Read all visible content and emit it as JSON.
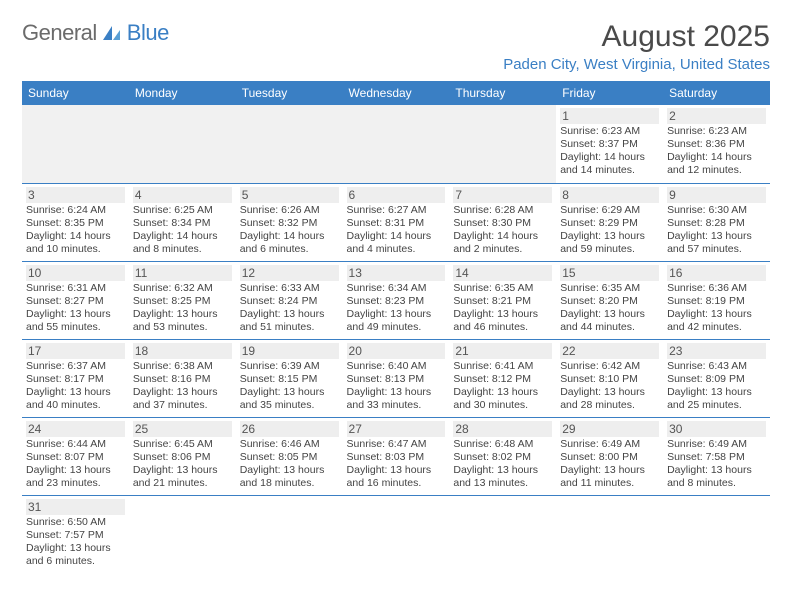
{
  "logo": {
    "part1": "General",
    "part2": "Blue"
  },
  "title": "August 2025",
  "location": "Paden City, West Virginia, United States",
  "colors": {
    "header_bg": "#3a7fc4",
    "header_text": "#ffffff",
    "accent": "#3a7fc4",
    "day_bg": "#eeeeee",
    "body_text": "#444444"
  },
  "weekdays": [
    "Sunday",
    "Monday",
    "Tuesday",
    "Wednesday",
    "Thursday",
    "Friday",
    "Saturday"
  ],
  "weeks": [
    [
      null,
      null,
      null,
      null,
      null,
      {
        "d": "1",
        "sr": "6:23 AM",
        "ss": "8:37 PM",
        "dl": "14 hours and 14 minutes."
      },
      {
        "d": "2",
        "sr": "6:23 AM",
        "ss": "8:36 PM",
        "dl": "14 hours and 12 minutes."
      }
    ],
    [
      {
        "d": "3",
        "sr": "6:24 AM",
        "ss": "8:35 PM",
        "dl": "14 hours and 10 minutes."
      },
      {
        "d": "4",
        "sr": "6:25 AM",
        "ss": "8:34 PM",
        "dl": "14 hours and 8 minutes."
      },
      {
        "d": "5",
        "sr": "6:26 AM",
        "ss": "8:32 PM",
        "dl": "14 hours and 6 minutes."
      },
      {
        "d": "6",
        "sr": "6:27 AM",
        "ss": "8:31 PM",
        "dl": "14 hours and 4 minutes."
      },
      {
        "d": "7",
        "sr": "6:28 AM",
        "ss": "8:30 PM",
        "dl": "14 hours and 2 minutes."
      },
      {
        "d": "8",
        "sr": "6:29 AM",
        "ss": "8:29 PM",
        "dl": "13 hours and 59 minutes."
      },
      {
        "d": "9",
        "sr": "6:30 AM",
        "ss": "8:28 PM",
        "dl": "13 hours and 57 minutes."
      }
    ],
    [
      {
        "d": "10",
        "sr": "6:31 AM",
        "ss": "8:27 PM",
        "dl": "13 hours and 55 minutes."
      },
      {
        "d": "11",
        "sr": "6:32 AM",
        "ss": "8:25 PM",
        "dl": "13 hours and 53 minutes."
      },
      {
        "d": "12",
        "sr": "6:33 AM",
        "ss": "8:24 PM",
        "dl": "13 hours and 51 minutes."
      },
      {
        "d": "13",
        "sr": "6:34 AM",
        "ss": "8:23 PM",
        "dl": "13 hours and 49 minutes."
      },
      {
        "d": "14",
        "sr": "6:35 AM",
        "ss": "8:21 PM",
        "dl": "13 hours and 46 minutes."
      },
      {
        "d": "15",
        "sr": "6:35 AM",
        "ss": "8:20 PM",
        "dl": "13 hours and 44 minutes."
      },
      {
        "d": "16",
        "sr": "6:36 AM",
        "ss": "8:19 PM",
        "dl": "13 hours and 42 minutes."
      }
    ],
    [
      {
        "d": "17",
        "sr": "6:37 AM",
        "ss": "8:17 PM",
        "dl": "13 hours and 40 minutes."
      },
      {
        "d": "18",
        "sr": "6:38 AM",
        "ss": "8:16 PM",
        "dl": "13 hours and 37 minutes."
      },
      {
        "d": "19",
        "sr": "6:39 AM",
        "ss": "8:15 PM",
        "dl": "13 hours and 35 minutes."
      },
      {
        "d": "20",
        "sr": "6:40 AM",
        "ss": "8:13 PM",
        "dl": "13 hours and 33 minutes."
      },
      {
        "d": "21",
        "sr": "6:41 AM",
        "ss": "8:12 PM",
        "dl": "13 hours and 30 minutes."
      },
      {
        "d": "22",
        "sr": "6:42 AM",
        "ss": "8:10 PM",
        "dl": "13 hours and 28 minutes."
      },
      {
        "d": "23",
        "sr": "6:43 AM",
        "ss": "8:09 PM",
        "dl": "13 hours and 25 minutes."
      }
    ],
    [
      {
        "d": "24",
        "sr": "6:44 AM",
        "ss": "8:07 PM",
        "dl": "13 hours and 23 minutes."
      },
      {
        "d": "25",
        "sr": "6:45 AM",
        "ss": "8:06 PM",
        "dl": "13 hours and 21 minutes."
      },
      {
        "d": "26",
        "sr": "6:46 AM",
        "ss": "8:05 PM",
        "dl": "13 hours and 18 minutes."
      },
      {
        "d": "27",
        "sr": "6:47 AM",
        "ss": "8:03 PM",
        "dl": "13 hours and 16 minutes."
      },
      {
        "d": "28",
        "sr": "6:48 AM",
        "ss": "8:02 PM",
        "dl": "13 hours and 13 minutes."
      },
      {
        "d": "29",
        "sr": "6:49 AM",
        "ss": "8:00 PM",
        "dl": "13 hours and 11 minutes."
      },
      {
        "d": "30",
        "sr": "6:49 AM",
        "ss": "7:58 PM",
        "dl": "13 hours and 8 minutes."
      }
    ],
    [
      {
        "d": "31",
        "sr": "6:50 AM",
        "ss": "7:57 PM",
        "dl": "13 hours and 6 minutes."
      },
      null,
      null,
      null,
      null,
      null,
      null
    ]
  ],
  "labels": {
    "sunrise": "Sunrise:",
    "sunset": "Sunset:",
    "daylight": "Daylight:"
  }
}
